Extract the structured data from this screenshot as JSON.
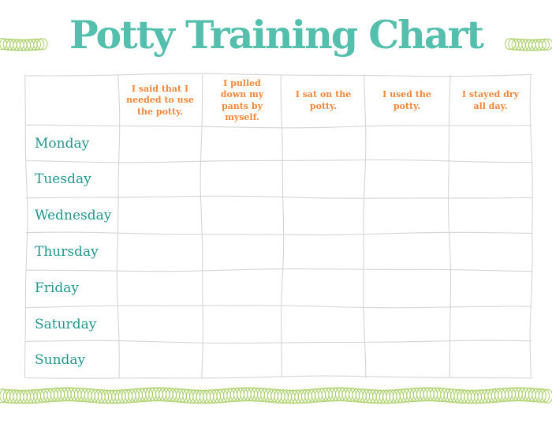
{
  "title": "Potty Training Chart",
  "table": {
    "column_headers": [
      "I said that I needed to use the potty.",
      "I pulled down my pants by myself.",
      "I sat on the potty.",
      "I used the potty.",
      "I stayed dry all day."
    ],
    "day_rows": [
      "Monday",
      "Tuesday",
      "Wednesday",
      "Thursday",
      "Friday",
      "Saturday",
      "Sunday"
    ]
  },
  "decorations": {
    "left_icon": "coil-squiggle-icon",
    "right_icon": "coil-squiggle-icon",
    "bottom_icon": "coil-squiggle-icon"
  },
  "colors": {
    "background": "#ffffff",
    "title_teal": "#54bfad",
    "day_teal": "#21968c",
    "header_orange": "#f5873a",
    "grid_gray": "#d5d5d5",
    "coil_green": "#a9cf66"
  }
}
